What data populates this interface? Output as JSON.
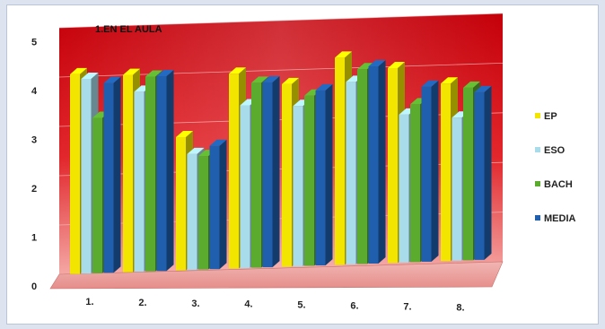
{
  "chart_data": {
    "type": "bar",
    "title": "1.EN EL AULA",
    "xlabel": "",
    "ylabel": "",
    "ylim": [
      0,
      5
    ],
    "yticks": [
      "0",
      "1",
      "2",
      "3",
      "4",
      "5"
    ],
    "categories": [
      "1.",
      "2.",
      "3.",
      "4.",
      "5.",
      "6.",
      "7.",
      "8."
    ],
    "series": [
      {
        "name": "EP",
        "color": "#f2e600",
        "values": [
          4.05,
          4.0,
          2.7,
          3.95,
          3.7,
          4.2,
          3.95,
          3.6
        ]
      },
      {
        "name": "ESO",
        "color": "#a8dcea",
        "values": [
          3.95,
          3.65,
          2.35,
          3.3,
          3.25,
          3.7,
          3.0,
          2.9
        ]
      },
      {
        "name": "BACH",
        "color": "#5aab2e",
        "values": [
          3.15,
          3.95,
          2.3,
          3.75,
          3.45,
          3.95,
          3.2,
          3.5
        ]
      },
      {
        "name": "MEDIA",
        "color": "#1f5fae",
        "values": [
          3.85,
          3.95,
          2.5,
          3.75,
          3.55,
          4.0,
          3.55,
          3.4
        ]
      }
    ],
    "legend_position": "right",
    "grid": true,
    "background": "3d red gradient back wall"
  }
}
